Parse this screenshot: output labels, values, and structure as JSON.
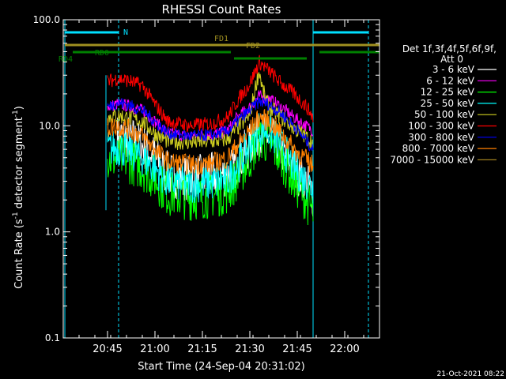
{
  "chart_data": {
    "type": "line",
    "title": "RHESSI Count Rates",
    "xlabel": "Start Time (24-Sep-04 20:31:02)",
    "ylabel_main": "Count Rate (s",
    "ylabel_sup1": "-1",
    "ylabel_mid": " detector segment",
    "ylabel_sup2": "-1",
    "ylabel_end": ")",
    "y_scale": "log",
    "ylim": [
      0.1,
      100
    ],
    "xlim_minutes": [
      0,
      100
    ],
    "x_ticks": [
      {
        "minute": 14,
        "label": "20:45"
      },
      {
        "minute": 29,
        "label": "21:00"
      },
      {
        "minute": 44,
        "label": "21:15"
      },
      {
        "minute": 59,
        "label": "21:30"
      },
      {
        "minute": 74,
        "label": "21:45"
      },
      {
        "minute": 89,
        "label": "22:00"
      }
    ],
    "y_ticks": [
      {
        "value": 100,
        "label": "100.0"
      },
      {
        "value": 10,
        "label": "10.0"
      },
      {
        "value": 1,
        "label": "1.0"
      },
      {
        "value": 0.1,
        "label": "0.1"
      }
    ],
    "legend_title_1": "Det 1f,3f,4f,5f,6f,9f,",
    "legend_title_2": "Att 0",
    "legend_placement": "right",
    "series": [
      {
        "name": "3 - 6 keV",
        "color": "#ffffff",
        "values": [
          [
            17,
            7.8
          ],
          [
            20,
            8
          ],
          [
            25,
            6.5
          ],
          [
            29,
            5
          ],
          [
            33,
            3.5
          ],
          [
            40,
            3.2
          ],
          [
            47,
            3.4
          ],
          [
            52,
            3.5
          ],
          [
            55,
            4.5
          ],
          [
            59,
            6.5
          ],
          [
            62,
            8.5
          ],
          [
            65,
            8
          ],
          [
            69,
            6
          ],
          [
            73,
            4
          ],
          [
            77,
            2.8
          ],
          [
            79,
            2.2
          ]
        ]
      },
      {
        "name": "6 - 12 keV",
        "color": "#ff00ff",
        "values": [
          [
            14,
            15
          ],
          [
            17,
            16
          ],
          [
            20,
            15.5
          ],
          [
            25,
            14
          ],
          [
            29,
            11
          ],
          [
            33,
            8.5
          ],
          [
            40,
            8
          ],
          [
            47,
            8.2
          ],
          [
            52,
            9
          ],
          [
            55,
            12
          ],
          [
            59,
            15
          ],
          [
            62,
            19
          ],
          [
            65,
            18
          ],
          [
            69,
            15
          ],
          [
            73,
            12
          ],
          [
            79,
            9
          ]
        ]
      },
      {
        "name": "12 - 25 keV",
        "color": "#00ff00",
        "values": [
          [
            14,
            4.8
          ],
          [
            17,
            5
          ],
          [
            20,
            4.8
          ],
          [
            25,
            4
          ],
          [
            29,
            3.2
          ],
          [
            33,
            2.3
          ],
          [
            40,
            2.1
          ],
          [
            47,
            2.2
          ],
          [
            52,
            2.4
          ],
          [
            55,
            3.2
          ],
          [
            59,
            5
          ],
          [
            62,
            7.5
          ],
          [
            65,
            7
          ],
          [
            69,
            5
          ],
          [
            73,
            3
          ],
          [
            77,
            2
          ],
          [
            79,
            1.5
          ]
        ]
      },
      {
        "name": "25 - 50 keV",
        "color": "#00ffff",
        "values": [
          [
            14,
            6
          ],
          [
            17,
            6.3
          ],
          [
            20,
            6
          ],
          [
            25,
            5
          ],
          [
            29,
            4
          ],
          [
            33,
            3
          ],
          [
            40,
            2.8
          ],
          [
            47,
            2.9
          ],
          [
            52,
            3.1
          ],
          [
            55,
            4.2
          ],
          [
            59,
            6.5
          ],
          [
            62,
            9.5
          ],
          [
            65,
            9
          ],
          [
            69,
            6.5
          ],
          [
            73,
            4
          ],
          [
            77,
            3
          ],
          [
            79,
            2.6
          ]
        ]
      },
      {
        "name": "50 - 100 keV",
        "color": "#d0d020",
        "values": [
          [
            14,
            12
          ],
          [
            17,
            12.5
          ],
          [
            20,
            12
          ],
          [
            25,
            11
          ],
          [
            29,
            8.5
          ],
          [
            33,
            7.2
          ],
          [
            40,
            7
          ],
          [
            47,
            7.1
          ],
          [
            52,
            7.5
          ],
          [
            55,
            9.5
          ],
          [
            59,
            12.5
          ],
          [
            61,
            25
          ],
          [
            62,
            33
          ],
          [
            63,
            22
          ],
          [
            65,
            15
          ],
          [
            69,
            12
          ],
          [
            73,
            9.5
          ],
          [
            79,
            7
          ]
        ]
      },
      {
        "name": "100 - 300 keV",
        "color": "#ff0000",
        "values": [
          [
            14,
            26
          ],
          [
            17,
            28
          ],
          [
            20,
            27
          ],
          [
            25,
            24
          ],
          [
            29,
            16
          ],
          [
            33,
            11
          ],
          [
            40,
            10
          ],
          [
            47,
            10.5
          ],
          [
            52,
            12
          ],
          [
            55,
            17
          ],
          [
            59,
            25
          ],
          [
            62,
            40
          ],
          [
            65,
            33
          ],
          [
            69,
            25
          ],
          [
            73,
            20
          ],
          [
            77,
            15
          ],
          [
            79,
            12
          ]
        ]
      },
      {
        "name": "300 - 800 keV",
        "color": "#0000ff",
        "values": [
          [
            14,
            15
          ],
          [
            17,
            16.5
          ],
          [
            20,
            16
          ],
          [
            25,
            14
          ],
          [
            29,
            11
          ],
          [
            33,
            8.5
          ],
          [
            40,
            8
          ],
          [
            47,
            8.2
          ],
          [
            52,
            8.8
          ],
          [
            55,
            11
          ],
          [
            59,
            14
          ],
          [
            62,
            17
          ],
          [
            65,
            16
          ],
          [
            69,
            13
          ],
          [
            73,
            10
          ],
          [
            79,
            6
          ]
        ]
      },
      {
        "name": "800 - 7000 keV",
        "color": "#ff8000",
        "values": [
          [
            14,
            9.5
          ],
          [
            17,
            10
          ],
          [
            20,
            9.5
          ],
          [
            25,
            8
          ],
          [
            29,
            6
          ],
          [
            33,
            4.6
          ],
          [
            40,
            4.3
          ],
          [
            47,
            4.4
          ],
          [
            52,
            5
          ],
          [
            55,
            6.5
          ],
          [
            59,
            9
          ],
          [
            62,
            12
          ],
          [
            65,
            11
          ],
          [
            69,
            8.5
          ],
          [
            73,
            6
          ],
          [
            79,
            4.2
          ]
        ]
      },
      {
        "name": "7000 - 15000 keV",
        "color": "#a08020",
        "values": []
      }
    ],
    "flags": [
      {
        "label": "N",
        "color": "#00e0ff"
      },
      {
        "label": "FD1",
        "color": "#a09020"
      },
      {
        "label": "FD2",
        "color": "#a09020"
      },
      {
        "label": "RD0",
        "color": "#008000"
      },
      {
        "label": "RD4",
        "color": "#008000"
      }
    ],
    "footer_date": "21-Oct-2021 08:22"
  }
}
